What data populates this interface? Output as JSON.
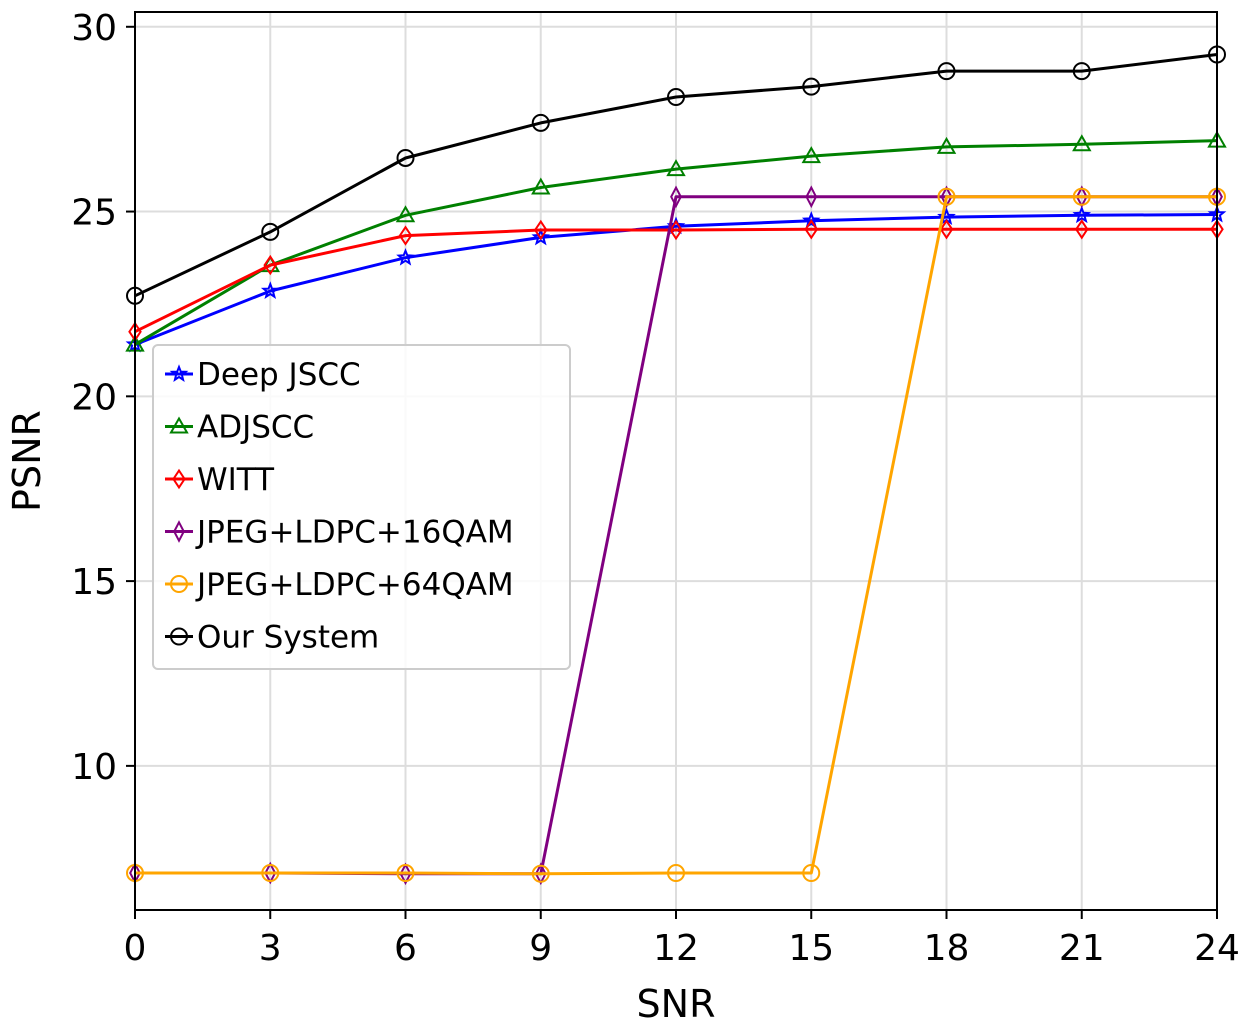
{
  "chart_data": {
    "type": "line",
    "title": "",
    "xlabel": "SNR",
    "ylabel": "PSNR",
    "x": [
      0,
      3,
      6,
      9,
      12,
      15,
      18,
      21,
      24
    ],
    "xticks": [
      "0",
      "3",
      "6",
      "9",
      "12",
      "15",
      "18",
      "21",
      "24"
    ],
    "yticks": [
      "10",
      "15",
      "20",
      "25",
      "30"
    ],
    "xlim": [
      0,
      24
    ],
    "ylim": [
      6.1,
      30.4
    ],
    "grid": true,
    "legend_position": "center-left",
    "series": [
      {
        "name": "Deep JSCC",
        "color": "#0000ff",
        "marker": "star",
        "values": [
          21.4,
          22.85,
          23.75,
          24.3,
          24.6,
          24.75,
          24.85,
          24.9,
          24.92
        ]
      },
      {
        "name": "ADJSCC",
        "color": "#008000",
        "marker": "triangle",
        "values": [
          21.4,
          23.55,
          24.9,
          25.65,
          26.15,
          26.5,
          26.75,
          26.82,
          26.92
        ]
      },
      {
        "name": "WITT",
        "color": "#ff0000",
        "marker": "diamond",
        "values": [
          21.75,
          23.55,
          24.35,
          24.5,
          24.5,
          24.52,
          24.52,
          24.52,
          24.52
        ]
      },
      {
        "name": "JPEG+LDPC+16QAM",
        "color": "#800080",
        "marker": "thin-diamond",
        "values": [
          7.1,
          7.1,
          7.08,
          7.08,
          25.4,
          25.4,
          25.4,
          25.4,
          25.4
        ]
      },
      {
        "name": "JPEG+LDPC+64QAM",
        "color": "#ffa500",
        "marker": "circle",
        "values": [
          7.1,
          7.1,
          7.1,
          7.08,
          7.1,
          7.1,
          25.4,
          25.4,
          25.4
        ]
      },
      {
        "name": "Our System",
        "color": "#000000",
        "marker": "circle",
        "values": [
          22.72,
          24.45,
          26.45,
          27.4,
          28.1,
          28.38,
          28.8,
          28.8,
          29.25
        ]
      }
    ]
  }
}
